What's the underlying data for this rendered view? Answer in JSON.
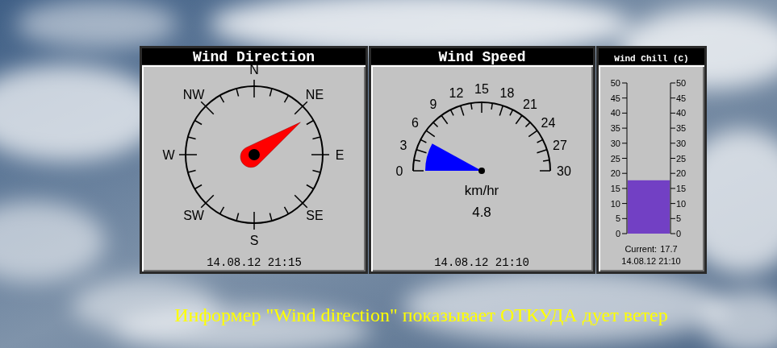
{
  "chart_data": [
    {
      "type": "compass",
      "title": "Wind Direction",
      "value": 55,
      "color": "#ff0000",
      "xlim": [
        0,
        360
      ],
      "xticks": [
        {
          "value": 0,
          "label": "N"
        },
        {
          "value": 45,
          "label": "NE"
        },
        {
          "value": 90,
          "label": "E"
        },
        {
          "value": 135,
          "label": "SE"
        },
        {
          "value": 180,
          "label": "S"
        },
        {
          "value": 225,
          "label": "SW"
        },
        {
          "value": 270,
          "label": "W"
        },
        {
          "value": 315,
          "label": "NW"
        }
      ],
      "minor_ticks": [
        15,
        30,
        60,
        75,
        105,
        120,
        150,
        165,
        195,
        210,
        240,
        255,
        285,
        300,
        330,
        345
      ],
      "timestamp": "14.08.12 21:15"
    },
    {
      "type": "gauge",
      "title": "Wind Speed",
      "value": 4.8,
      "unit": "km/hr",
      "color": "#0000ff",
      "data_labels": true,
      "xlim": [
        0,
        30
      ],
      "xticks": [
        0,
        3,
        6,
        9,
        12,
        15,
        18,
        21,
        24,
        27,
        30
      ],
      "minor_ticks": [
        1.5,
        4.5,
        7.5,
        10.5,
        13.5,
        16.5,
        19.5,
        22.5,
        25.5,
        28.5
      ],
      "timestamp": "14.08.12 21:10"
    },
    {
      "type": "bar",
      "title": "Wind Chill (C)",
      "values": [
        17.7
      ],
      "color": "#7240c4",
      "data_labels": true,
      "annotation": "Current:",
      "ylim": [
        0,
        50
      ],
      "yticks": [
        0,
        5,
        10,
        15,
        20,
        25,
        30,
        35,
        40,
        45,
        50
      ],
      "timestamp": "14.08.12 21:10"
    }
  ],
  "caption": "Информер \"Wind direction\" показывает ОТКУДА дует ветер"
}
